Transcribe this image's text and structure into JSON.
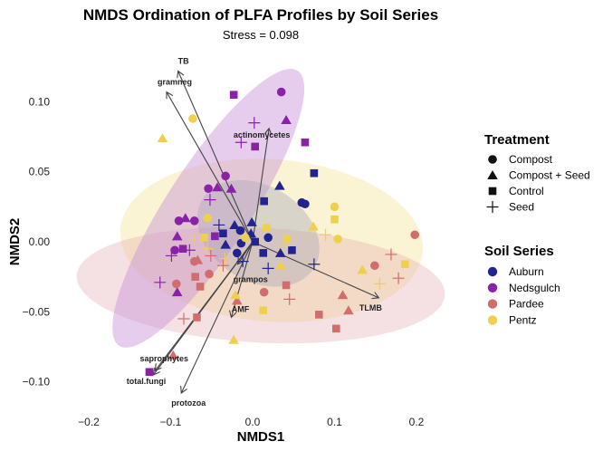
{
  "chart_data": {
    "type": "scatter",
    "title": "NMDS Ordination of PLFA Profiles by Soil Series",
    "subtitle": "Stress = 0.098",
    "xlabel": "NMDS1",
    "ylabel": "NMDS2",
    "xlim": [
      -0.23,
      0.255
    ],
    "ylim": [
      -0.125,
      0.135
    ],
    "x_ticks": [
      {
        "value": -0.2,
        "label": "−0.2"
      },
      {
        "value": -0.1,
        "label": "−0.1"
      },
      {
        "value": 0.0,
        "label": "0.0"
      },
      {
        "value": 0.1,
        "label": "0.1"
      },
      {
        "value": 0.2,
        "label": "0.2"
      }
    ],
    "y_ticks": [
      {
        "value": 0.1,
        "label": "0.10"
      },
      {
        "value": 0.05,
        "label": "0.05"
      },
      {
        "value": 0.0,
        "label": "0.00"
      },
      {
        "value": -0.05,
        "label": "−0.05"
      },
      {
        "value": -0.1,
        "label": "−0.10"
      }
    ],
    "grid": false,
    "legend_position": "right",
    "treatment_legend": {
      "title": "Treatment",
      "items": [
        {
          "label": "Compost",
          "shape": "circle"
        },
        {
          "label": "Compost + Seed",
          "shape": "triangle"
        },
        {
          "label": "Control",
          "shape": "square"
        },
        {
          "label": "Seed",
          "shape": "plus"
        }
      ]
    },
    "soil_legend": {
      "title": "Soil Series",
      "items": [
        {
          "label": "Auburn",
          "color": "#23238e"
        },
        {
          "label": "Nedsgulch",
          "color": "#8a22a8"
        },
        {
          "label": "Pardee",
          "color": "#d06d6d"
        },
        {
          "label": "Pentz",
          "color": "#efd04e"
        }
      ]
    },
    "ellipses": [
      {
        "series": "Pentz",
        "cx": 0.023,
        "cy": 0.001,
        "rx": 0.185,
        "ry": 0.058,
        "angle_deg": -4,
        "fill": "#f7e7a0",
        "opacity": 0.45
      },
      {
        "series": "Pardee",
        "cx": 0.01,
        "cy": -0.031,
        "rx": 0.225,
        "ry": 0.041,
        "angle_deg": -3,
        "fill": "#e2a9b0",
        "opacity": 0.35
      },
      {
        "series": "Nedsgulch",
        "cx": -0.054,
        "cy": 0.024,
        "rx": 0.2,
        "ry": 0.03,
        "angle_deg": 57,
        "fill": "#c890d8",
        "opacity": 0.45
      },
      {
        "series": "Auburn",
        "cx": 0.007,
        "cy": 0.006,
        "rx": 0.08,
        "ry": 0.034,
        "angle_deg": -32,
        "fill": "#a8a6b8",
        "opacity": 0.4
      }
    ],
    "points": [
      {
        "series": "Auburn",
        "shape": "square",
        "x": 0.075,
        "y": 0.049
      },
      {
        "series": "Auburn",
        "shape": "triangle",
        "x": 0.033,
        "y": 0.04
      },
      {
        "series": "Auburn",
        "shape": "circle",
        "x": 0.06,
        "y": 0.028
      },
      {
        "series": "Auburn",
        "shape": "circle",
        "x": 0.064,
        "y": 0.027
      },
      {
        "series": "Auburn",
        "shape": "square",
        "x": 0.014,
        "y": 0.029
      },
      {
        "series": "Auburn",
        "shape": "plus",
        "x": -0.041,
        "y": 0.012
      },
      {
        "series": "Auburn",
        "shape": "triangle",
        "x": -0.022,
        "y": 0.012
      },
      {
        "series": "Auburn",
        "shape": "triangle",
        "x": -0.001,
        "y": 0.014
      },
      {
        "series": "Auburn",
        "shape": "circle",
        "x": -0.015,
        "y": 0.008
      },
      {
        "series": "Auburn",
        "shape": "square",
        "x": -0.036,
        "y": 0.006
      },
      {
        "series": "Auburn",
        "shape": "triangle",
        "x": -0.002,
        "y": 0.006
      },
      {
        "series": "Auburn",
        "shape": "square",
        "x": 0.003,
        "y": 0.0
      },
      {
        "series": "Auburn",
        "shape": "circle",
        "x": 0.019,
        "y": 0.003
      },
      {
        "series": "Auburn",
        "shape": "triangle",
        "x": -0.033,
        "y": -0.002
      },
      {
        "series": "Auburn",
        "shape": "circle",
        "x": -0.014,
        "y": -0.001
      },
      {
        "series": "Auburn",
        "shape": "circle",
        "x": -0.019,
        "y": -0.008
      },
      {
        "series": "Auburn",
        "shape": "square",
        "x": 0.013,
        "y": -0.008
      },
      {
        "series": "Auburn",
        "shape": "triangle",
        "x": 0.034,
        "y": -0.008
      },
      {
        "series": "Auburn",
        "shape": "square",
        "x": 0.048,
        "y": -0.006
      },
      {
        "series": "Auburn",
        "shape": "plus",
        "x": -0.012,
        "y": -0.014
      },
      {
        "series": "Auburn",
        "shape": "plus",
        "x": 0.019,
        "y": -0.019
      },
      {
        "series": "Auburn",
        "shape": "plus",
        "x": 0.075,
        "y": -0.016
      },
      {
        "series": "Nedsgulch",
        "shape": "square",
        "x": -0.023,
        "y": 0.105
      },
      {
        "series": "Nedsgulch",
        "shape": "circle",
        "x": 0.035,
        "y": 0.107
      },
      {
        "series": "Nedsgulch",
        "shape": "plus",
        "x": 0.002,
        "y": 0.085
      },
      {
        "series": "Nedsgulch",
        "shape": "triangle",
        "x": 0.041,
        "y": 0.087
      },
      {
        "series": "Nedsgulch",
        "shape": "plus",
        "x": -0.014,
        "y": 0.071
      },
      {
        "series": "Nedsgulch",
        "shape": "square",
        "x": 0.003,
        "y": 0.068
      },
      {
        "series": "Nedsgulch",
        "shape": "square",
        "x": 0.064,
        "y": 0.071
      },
      {
        "series": "Nedsgulch",
        "shape": "circle",
        "x": -0.033,
        "y": 0.047
      },
      {
        "series": "Nedsgulch",
        "shape": "circle",
        "x": -0.054,
        "y": 0.038
      },
      {
        "series": "Nedsgulch",
        "shape": "triangle",
        "x": -0.043,
        "y": 0.039
      },
      {
        "series": "Nedsgulch",
        "shape": "triangle",
        "x": -0.026,
        "y": 0.038
      },
      {
        "series": "Nedsgulch",
        "shape": "plus",
        "x": -0.052,
        "y": 0.03
      },
      {
        "series": "Nedsgulch",
        "shape": "circle",
        "x": -0.09,
        "y": 0.015
      },
      {
        "series": "Nedsgulch",
        "shape": "triangle",
        "x": -0.082,
        "y": 0.017
      },
      {
        "series": "Nedsgulch",
        "shape": "circle",
        "x": -0.071,
        "y": 0.015
      },
      {
        "series": "Nedsgulch",
        "shape": "square",
        "x": -0.046,
        "y": 0.004
      },
      {
        "series": "Nedsgulch",
        "shape": "triangle",
        "x": -0.092,
        "y": 0.004
      },
      {
        "series": "Nedsgulch",
        "shape": "circle",
        "x": -0.095,
        "y": -0.006
      },
      {
        "series": "Nedsgulch",
        "shape": "square",
        "x": -0.085,
        "y": -0.005
      },
      {
        "series": "Nedsgulch",
        "shape": "plus",
        "x": -0.077,
        "y": -0.006
      },
      {
        "series": "Nedsgulch",
        "shape": "plus",
        "x": -0.099,
        "y": -0.01
      },
      {
        "series": "Nedsgulch",
        "shape": "plus",
        "x": -0.113,
        "y": -0.029
      },
      {
        "series": "Nedsgulch",
        "shape": "triangle",
        "x": -0.092,
        "y": -0.036
      },
      {
        "series": "Nedsgulch",
        "shape": "square",
        "x": -0.126,
        "y": -0.093
      },
      {
        "series": "Pardee",
        "shape": "circle",
        "x": 0.198,
        "y": 0.005
      },
      {
        "series": "Pardee",
        "shape": "plus",
        "x": 0.169,
        "y": -0.009
      },
      {
        "series": "Pardee",
        "shape": "circle",
        "x": 0.149,
        "y": -0.017
      },
      {
        "series": "Pardee",
        "shape": "plus",
        "x": 0.178,
        "y": -0.026
      },
      {
        "series": "Pardee",
        "shape": "triangle",
        "x": 0.11,
        "y": -0.038
      },
      {
        "series": "Pardee",
        "shape": "triangle",
        "x": 0.117,
        "y": -0.049
      },
      {
        "series": "Pardee",
        "shape": "square",
        "x": 0.081,
        "y": -0.052
      },
      {
        "series": "Pardee",
        "shape": "square",
        "x": 0.102,
        "y": -0.062
      },
      {
        "series": "Pardee",
        "shape": "plus",
        "x": -0.051,
        "y": -0.01
      },
      {
        "series": "Pardee",
        "shape": "circle",
        "x": -0.071,
        "y": -0.014
      },
      {
        "series": "Pardee",
        "shape": "triangle",
        "x": -0.067,
        "y": -0.013
      },
      {
        "series": "Pardee",
        "shape": "plus",
        "x": -0.036,
        "y": -0.017
      },
      {
        "series": "Pardee",
        "shape": "circle",
        "x": -0.053,
        "y": -0.023
      },
      {
        "series": "Pardee",
        "shape": "square",
        "x": -0.07,
        "y": -0.025
      },
      {
        "series": "Pardee",
        "shape": "square",
        "x": -0.064,
        "y": -0.032
      },
      {
        "series": "Pardee",
        "shape": "circle",
        "x": -0.093,
        "y": -0.03
      },
      {
        "series": "Pardee",
        "shape": "triangle",
        "x": -0.019,
        "y": -0.042
      },
      {
        "series": "Pardee",
        "shape": "circle",
        "x": 0.014,
        "y": -0.036
      },
      {
        "series": "Pardee",
        "shape": "square",
        "x": 0.041,
        "y": -0.031
      },
      {
        "series": "Pardee",
        "shape": "plus",
        "x": 0.045,
        "y": -0.041
      },
      {
        "series": "Pardee",
        "shape": "plus",
        "x": -0.084,
        "y": -0.055
      },
      {
        "series": "Pardee",
        "shape": "square",
        "x": -0.068,
        "y": -0.054
      },
      {
        "series": "Pardee",
        "shape": "triangle",
        "x": -0.097,
        "y": -0.081
      },
      {
        "series": "Pentz",
        "shape": "circle",
        "x": -0.073,
        "y": 0.088
      },
      {
        "series": "Pentz",
        "shape": "triangle",
        "x": -0.11,
        "y": 0.074
      },
      {
        "series": "Pentz",
        "shape": "circle",
        "x": -0.055,
        "y": 0.017
      },
      {
        "series": "Pentz",
        "shape": "square",
        "x": 0.017,
        "y": 0.01
      },
      {
        "series": "Pentz",
        "shape": "triangle",
        "x": 0.074,
        "y": 0.011
      },
      {
        "series": "Pentz",
        "shape": "circle",
        "x": 0.1,
        "y": 0.025
      },
      {
        "series": "Pentz",
        "shape": "square",
        "x": 0.1,
        "y": 0.016
      },
      {
        "series": "Pentz",
        "shape": "plus",
        "x": 0.089,
        "y": 0.005
      },
      {
        "series": "Pentz",
        "shape": "circle",
        "x": 0.104,
        "y": 0.002
      },
      {
        "series": "Pentz",
        "shape": "circle",
        "x": -0.009,
        "y": 0.003
      },
      {
        "series": "Pentz",
        "shape": "circle",
        "x": 0.042,
        "y": 0.002
      },
      {
        "series": "Pentz",
        "shape": "plus",
        "x": 0.038,
        "y": -0.003
      },
      {
        "series": "Pentz",
        "shape": "triangle",
        "x": 0.034,
        "y": -0.017
      },
      {
        "series": "Pentz",
        "shape": "plus",
        "x": -0.072,
        "y": 0.002
      },
      {
        "series": "Pentz",
        "shape": "square",
        "x": -0.059,
        "y": 0.003
      },
      {
        "series": "Pentz",
        "shape": "plus",
        "x": -0.055,
        "y": -0.005
      },
      {
        "series": "Pentz",
        "shape": "plus",
        "x": -0.034,
        "y": -0.012
      },
      {
        "series": "Pentz",
        "shape": "triangle",
        "x": 0.134,
        "y": -0.02
      },
      {
        "series": "Pentz",
        "shape": "square",
        "x": 0.186,
        "y": -0.016
      },
      {
        "series": "Pentz",
        "shape": "plus",
        "x": 0.155,
        "y": -0.03
      },
      {
        "series": "Pentz",
        "shape": "triangle",
        "x": -0.021,
        "y": -0.038
      },
      {
        "series": "Pentz",
        "shape": "square",
        "x": 0.013,
        "y": -0.049
      },
      {
        "series": "Pentz",
        "shape": "triangle",
        "x": -0.023,
        "y": -0.07
      }
    ],
    "vectors": [
      {
        "label": "TB",
        "x": -0.091,
        "y": 0.122
      },
      {
        "label": "gramneg",
        "x": -0.105,
        "y": 0.107
      },
      {
        "label": "actinomycetes",
        "x": 0.02,
        "y": 0.081
      },
      {
        "label": "TLMB",
        "x": 0.154,
        "y": -0.04
      },
      {
        "label": "grampos",
        "x": -0.018,
        "y": -0.016
      },
      {
        "label": "AMF",
        "x": -0.026,
        "y": -0.054
      },
      {
        "label": "saprophytes",
        "x": -0.119,
        "y": -0.092
      },
      {
        "label": "total.fungi",
        "x": -0.121,
        "y": -0.095
      },
      {
        "label": "protozoa",
        "x": -0.087,
        "y": -0.108
      }
    ]
  }
}
